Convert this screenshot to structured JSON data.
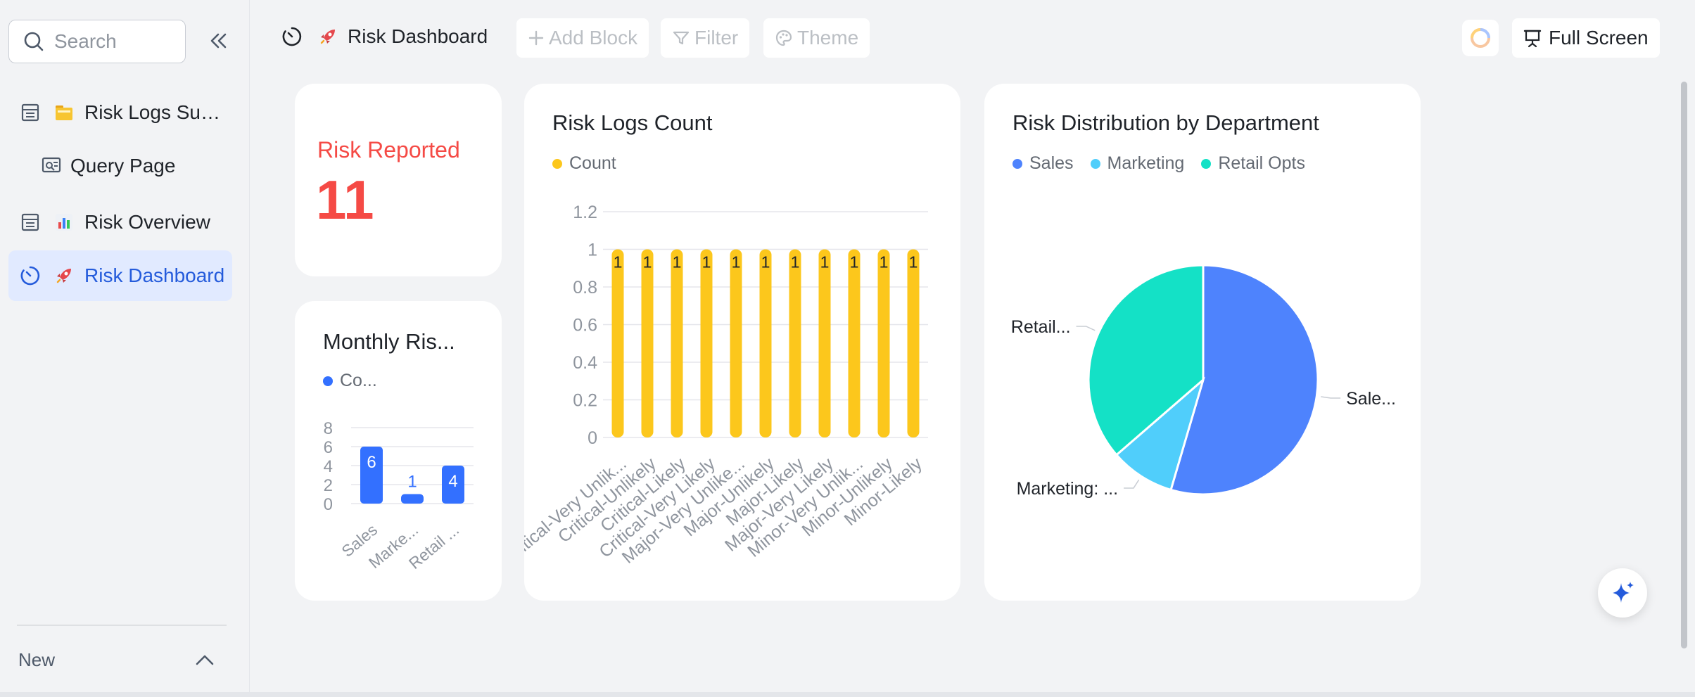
{
  "sidebar": {
    "search": {
      "placeholder": "Search"
    },
    "items": [
      {
        "label": "Risk Logs Sum...",
        "emoji": "🗂️",
        "icon": "table-icon"
      },
      {
        "label": "Query Page",
        "icon": "query-form-icon"
      },
      {
        "label": "Risk Overview",
        "emoji": "📊",
        "icon": "table-icon"
      },
      {
        "label": "Risk Dashboard",
        "emoji": "🚀",
        "icon": "dashboard-icon",
        "active": true
      }
    ],
    "new_label": "New"
  },
  "toolbar": {
    "title": "Risk Dashboard",
    "title_emoji": "🚀",
    "add_block": "Add Block",
    "filter": "Filter",
    "theme": "Theme",
    "full_screen": "Full Screen"
  },
  "metric": {
    "label": "Risk Reported",
    "value": "11",
    "color": "#f54a45"
  },
  "chart_data": [
    {
      "type": "bar",
      "title": "Monthly Ris...",
      "legend": [
        "Co..."
      ],
      "categories": [
        "Sales",
        "Marke...",
        "Retail ..."
      ],
      "values": [
        6,
        1,
        4
      ],
      "yticks": [
        "8",
        "6",
        "4",
        "2",
        "0"
      ],
      "ylim": [
        0,
        8
      ],
      "color": "#3370ff"
    },
    {
      "type": "bar",
      "title": "Risk Logs Count",
      "legend": [
        "Count"
      ],
      "categories": [
        "Critical-Very Unlik...",
        "Critical-Unlikely",
        "Critical-Likely",
        "Critical-Very Likely",
        "Major-Very Unlike...",
        "Major-Unlikely",
        "Major-Likely",
        "Major-Very Likely",
        "Minor-Very Unlik...",
        "Minor-Unlikely",
        "Minor-Likely"
      ],
      "values": [
        1,
        1,
        1,
        1,
        1,
        1,
        1,
        1,
        1,
        1,
        1
      ],
      "data_labels": [
        "1",
        "1",
        "1",
        "1",
        "1",
        "1",
        "1",
        "1",
        "1",
        "1",
        "1"
      ],
      "yticks": [
        "1.2",
        "1",
        "0.8",
        "0.6",
        "0.4",
        "0.2",
        "0"
      ],
      "ylim": [
        0,
        1.2
      ],
      "color": "#fcc71c"
    },
    {
      "type": "pie",
      "title": "Risk Distribution by Department",
      "legend": [
        "Sales",
        "Marketing",
        "Retail Opts"
      ],
      "values": [
        6,
        1,
        4
      ],
      "slice_labels": [
        "Sale...",
        "Marketing: ...",
        "Retail..."
      ],
      "colors": [
        "#4e83fd",
        "#50cefb",
        "#14e1c6"
      ]
    }
  ]
}
